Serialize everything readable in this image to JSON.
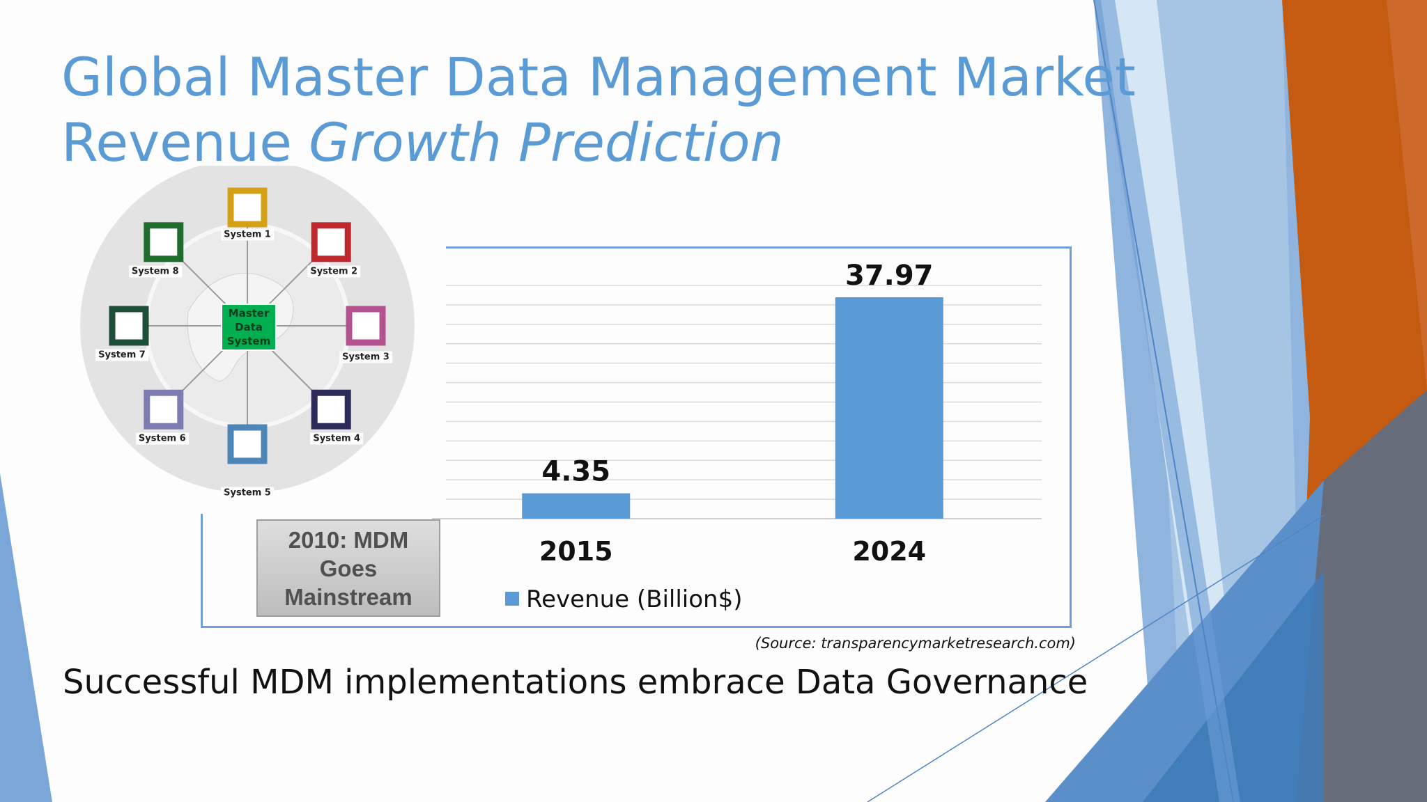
{
  "title": {
    "line1": "Global Master Data Management Market",
    "line2_normal": "Revenue ",
    "line2_italic": "Growth Prediction"
  },
  "diagram": {
    "hub_label": "Master Data System",
    "nodes": [
      {
        "label": "System 1",
        "color": "#d4a017"
      },
      {
        "label": "System 2",
        "color": "#c0282d"
      },
      {
        "label": "System 3",
        "color": "#b4528f"
      },
      {
        "label": "System 4",
        "color": "#2e2a5a"
      },
      {
        "label": "System 5",
        "color": "#4d85b8"
      },
      {
        "label": "System 6",
        "color": "#7d7bb0"
      },
      {
        "label": "System 7",
        "color": "#1f4e38"
      },
      {
        "label": "System 8",
        "color": "#1e6d2c"
      }
    ]
  },
  "chart_data": {
    "type": "bar",
    "categories": [
      "2015",
      "2024"
    ],
    "series": [
      {
        "name": "Revenue (Billion$)",
        "values": [
          4.35,
          37.97
        ],
        "color": "#5b9bd5"
      }
    ],
    "data_labels": [
      "4.35",
      "37.97"
    ],
    "ylim": [
      0,
      40
    ],
    "grid": true,
    "legend": "bottom"
  },
  "callout": "2010: MDM Goes Mainstream",
  "source": "(Source:  transparencymarketresearch.com)",
  "footer": "Successful MDM implementations embrace Data Governance",
  "colors": {
    "accent": "#5b9bd5",
    "orange": "#c55a11"
  }
}
